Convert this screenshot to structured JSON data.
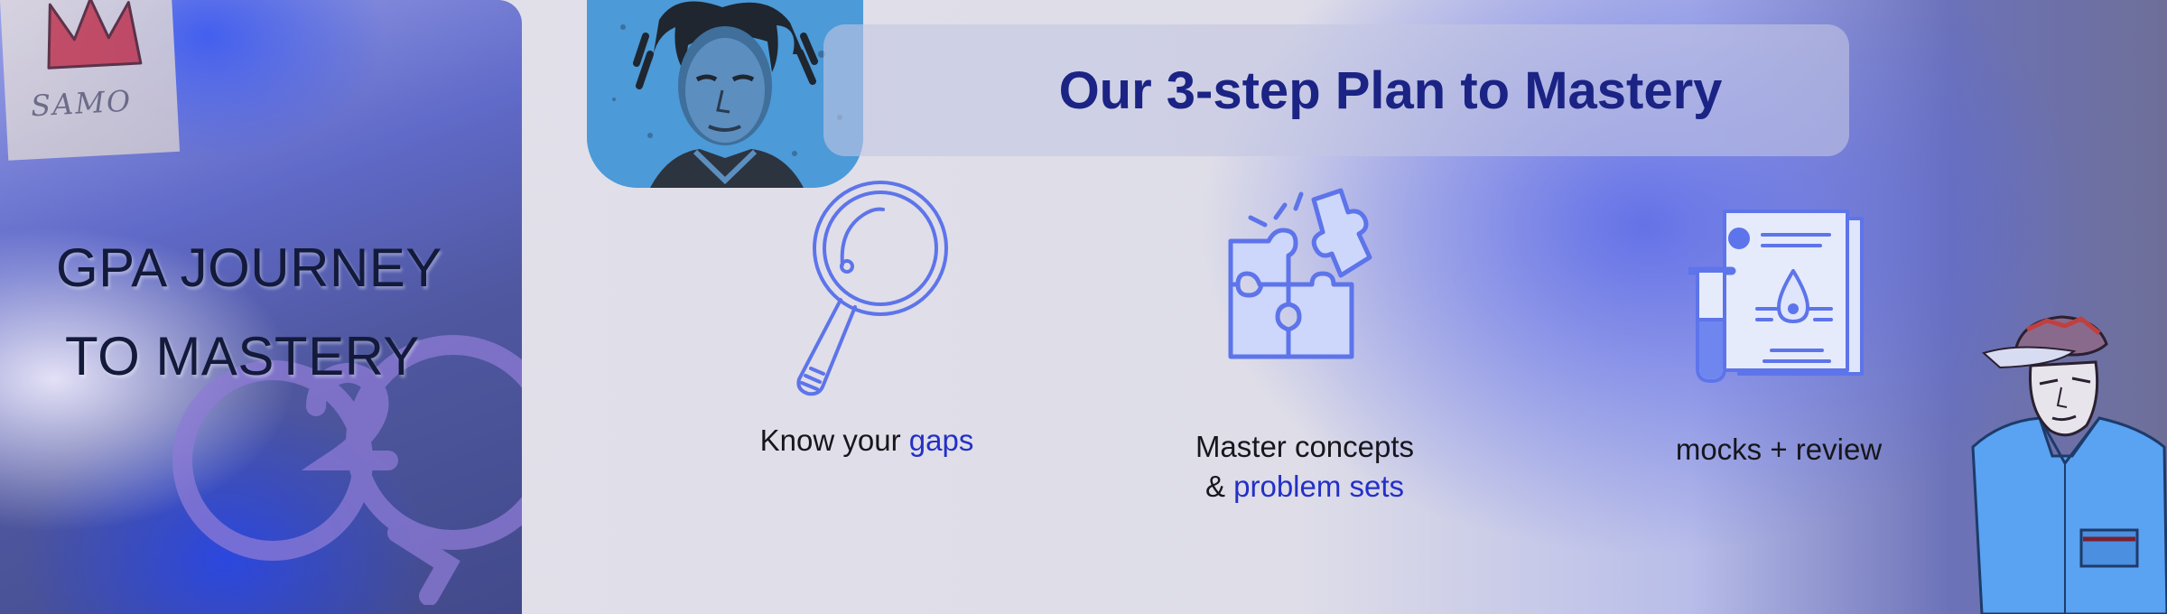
{
  "left_panel": {
    "title_line1": "GPA JOURNEY",
    "title_line2": "TO MASTERY",
    "sticker_text": "SAMO"
  },
  "banner": {
    "title": "Our 3-step Plan to Mastery"
  },
  "steps": [
    {
      "icon": "magnifying-glass-icon",
      "text": "Know your ",
      "highlight": "gaps"
    },
    {
      "icon": "puzzle-pieces-icon",
      "line1": "Master concepts",
      "line2_prefix": "& ",
      "highlight": "problem sets"
    },
    {
      "icon": "lab-report-test-tube-icon",
      "text": "mocks + review"
    }
  ],
  "colors": {
    "accent": "#2430c6",
    "heading": "#1b2384",
    "icon_stroke": "#5d74ea",
    "icon_fill": "#cdd7fb",
    "panel_dark": "#424a8c"
  }
}
